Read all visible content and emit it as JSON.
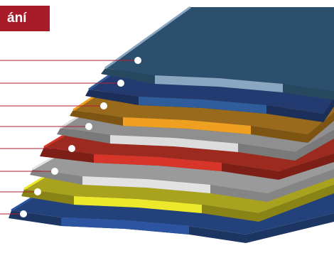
{
  "header": {
    "label": "ání",
    "color": "#a81c2a"
  },
  "layers": [
    {
      "name": "layer-top-blue",
      "top": "#2c4f6e",
      "side": "#27485f",
      "edge": "#8aa6c0"
    },
    {
      "name": "layer-navy",
      "top": "#233b70",
      "side": "#1c2f5a",
      "edge": "#2f5c9a"
    },
    {
      "name": "layer-orange",
      "top": "#9a6a1c",
      "side": "#7e5412",
      "edge": "#f0a020"
    },
    {
      "name": "layer-gray",
      "top": "#8f8f8f",
      "side": "#7a7a7a",
      "edge": "#dcdcdc"
    },
    {
      "name": "layer-red",
      "top": "#9c2a1f",
      "side": "#7d1f16",
      "edge": "#d8352a"
    },
    {
      "name": "layer-light-gray",
      "top": "#9a9a9a",
      "side": "#858585",
      "edge": "#e2e2e2"
    },
    {
      "name": "layer-yellow",
      "top": "#a8a21e",
      "side": "#8a8416",
      "edge": "#ece82c"
    },
    {
      "name": "layer-bottom-blue",
      "top": "#23417a",
      "side": "#1c3563",
      "edge": "#2d54a0"
    }
  ],
  "leader_color": "#b02030",
  "marker_color": "#ffffff"
}
